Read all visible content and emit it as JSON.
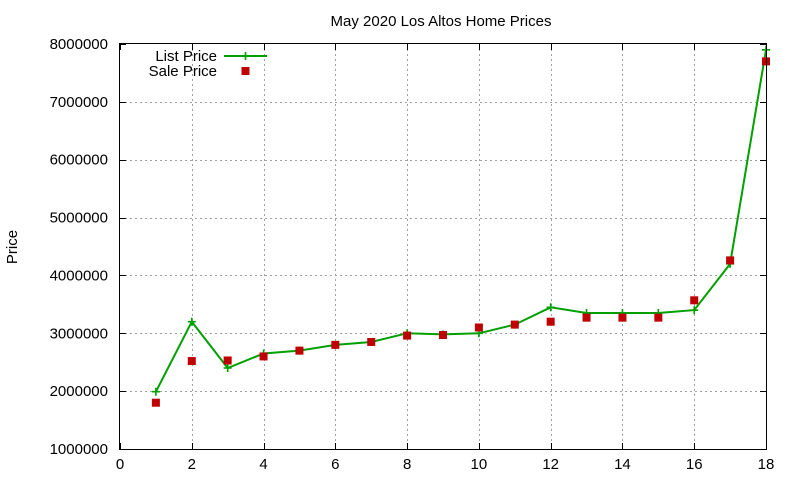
{
  "chart_data": {
    "type": "line",
    "title": "May 2020 Los Altos Home Prices",
    "xlabel": "",
    "ylabel": "Price",
    "xlim": [
      0,
      18
    ],
    "ylim": [
      1000000,
      8000000
    ],
    "x_ticks": [
      0,
      2,
      4,
      6,
      8,
      10,
      12,
      14,
      16,
      18
    ],
    "y_ticks": [
      1000000,
      2000000,
      3000000,
      4000000,
      5000000,
      6000000,
      7000000,
      8000000
    ],
    "x_tick_labels": [
      "0",
      "2",
      "4",
      "6",
      "8",
      "10",
      "12",
      "14",
      "16",
      "18"
    ],
    "y_tick_labels": [
      "1000000",
      "2000000",
      "3000000",
      "4000000",
      "5000000",
      "6000000",
      "7000000",
      "8000000"
    ],
    "grid": true,
    "legend_position": "top-left",
    "x": [
      1,
      2,
      3,
      4,
      5,
      6,
      7,
      8,
      9,
      10,
      11,
      12,
      13,
      14,
      15,
      16,
      17,
      18
    ],
    "series": [
      {
        "name": "List Price",
        "style": "line-plus",
        "color": "#00a000",
        "values": [
          1990000,
          3200000,
          2400000,
          2650000,
          2700000,
          2800000,
          2850000,
          3000000,
          2980000,
          3000000,
          3150000,
          3450000,
          3350000,
          3350000,
          3350000,
          3400000,
          4200000,
          7900000
        ]
      },
      {
        "name": "Sale Price",
        "style": "square-points",
        "color": "#c00000",
        "values": [
          1800000,
          2520000,
          2530000,
          2600000,
          2700000,
          2800000,
          2850000,
          2960000,
          2970000,
          3100000,
          3150000,
          3200000,
          3270000,
          3270000,
          3270000,
          3570000,
          4260000,
          7700000
        ]
      }
    ]
  }
}
